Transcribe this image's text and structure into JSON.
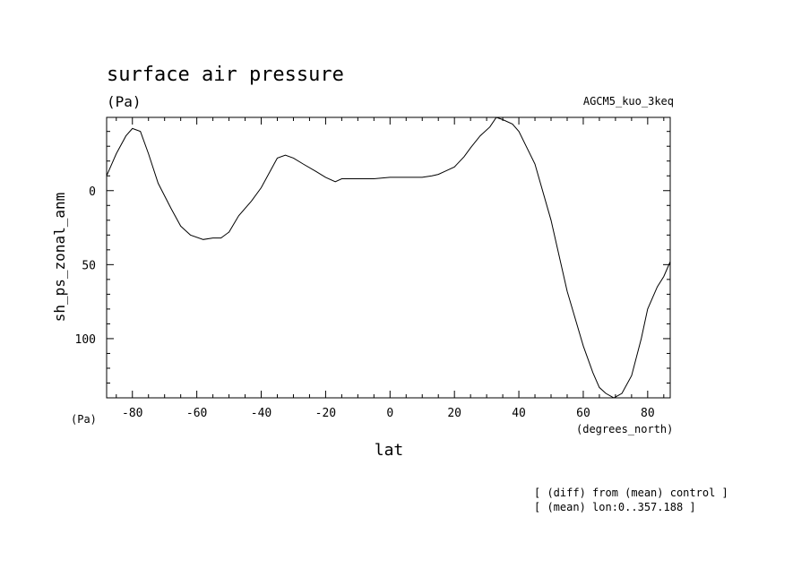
{
  "chart_data": {
    "type": "line",
    "title": "surface air pressure",
    "units": "(Pa)",
    "model": "AGCM5_kuo_3keq",
    "xlabel": "lat",
    "xunits": "(degrees_north)",
    "ylabel": "sh_ps_zonal_anm",
    "yunits": "(Pa)",
    "xlim": [
      -88,
      87
    ],
    "ylim": [
      -49.5,
      140
    ],
    "y_inverted": true,
    "x_ticks": [
      -80,
      -60,
      -40,
      -20,
      0,
      20,
      40,
      60,
      80
    ],
    "x_tick_labels": [
      "-80",
      "-60",
      "-40",
      "-20",
      "0",
      "20",
      "40",
      "60",
      "80"
    ],
    "y_ticks": [
      0,
      50,
      100
    ],
    "y_tick_labels": [
      "0",
      "50",
      "100"
    ],
    "grid": false,
    "annotations": [
      "[ (diff) from (mean) control ]",
      "[ (mean) lon:0..357.188 ]"
    ],
    "series": [
      {
        "x": [
          -88,
          -85,
          -82,
          -80,
          -77.5,
          -75,
          -72,
          -68,
          -65,
          -62,
          -58,
          -55,
          -52.5,
          -50,
          -47,
          -43,
          -40,
          -37,
          -35,
          -32.5,
          -30,
          -27,
          -23,
          -20,
          -17,
          -15,
          -10,
          -5,
          0,
          5,
          10,
          13,
          15,
          17,
          20,
          23,
          25,
          28,
          31,
          33,
          35,
          38,
          40,
          45,
          50,
          55,
          60,
          63,
          65,
          67,
          69.5,
          72,
          75,
          78,
          80,
          83,
          85,
          87
        ],
        "y": [
          -10,
          -25,
          -37,
          -42,
          -40,
          -25,
          -5,
          12,
          24,
          30,
          33,
          32,
          32,
          28,
          17,
          7,
          -2,
          -14,
          -22,
          -24,
          -22,
          -18,
          -13,
          -9,
          -6,
          -8,
          -8,
          -8,
          -9,
          -9,
          -9,
          -10,
          -11,
          -13,
          -16,
          -23,
          -29,
          -37,
          -43,
          -49.5,
          -48,
          -45,
          -40,
          -18,
          20,
          68,
          105,
          123,
          133,
          137,
          140,
          137,
          125,
          100,
          80,
          65,
          58,
          48
        ]
      }
    ]
  }
}
